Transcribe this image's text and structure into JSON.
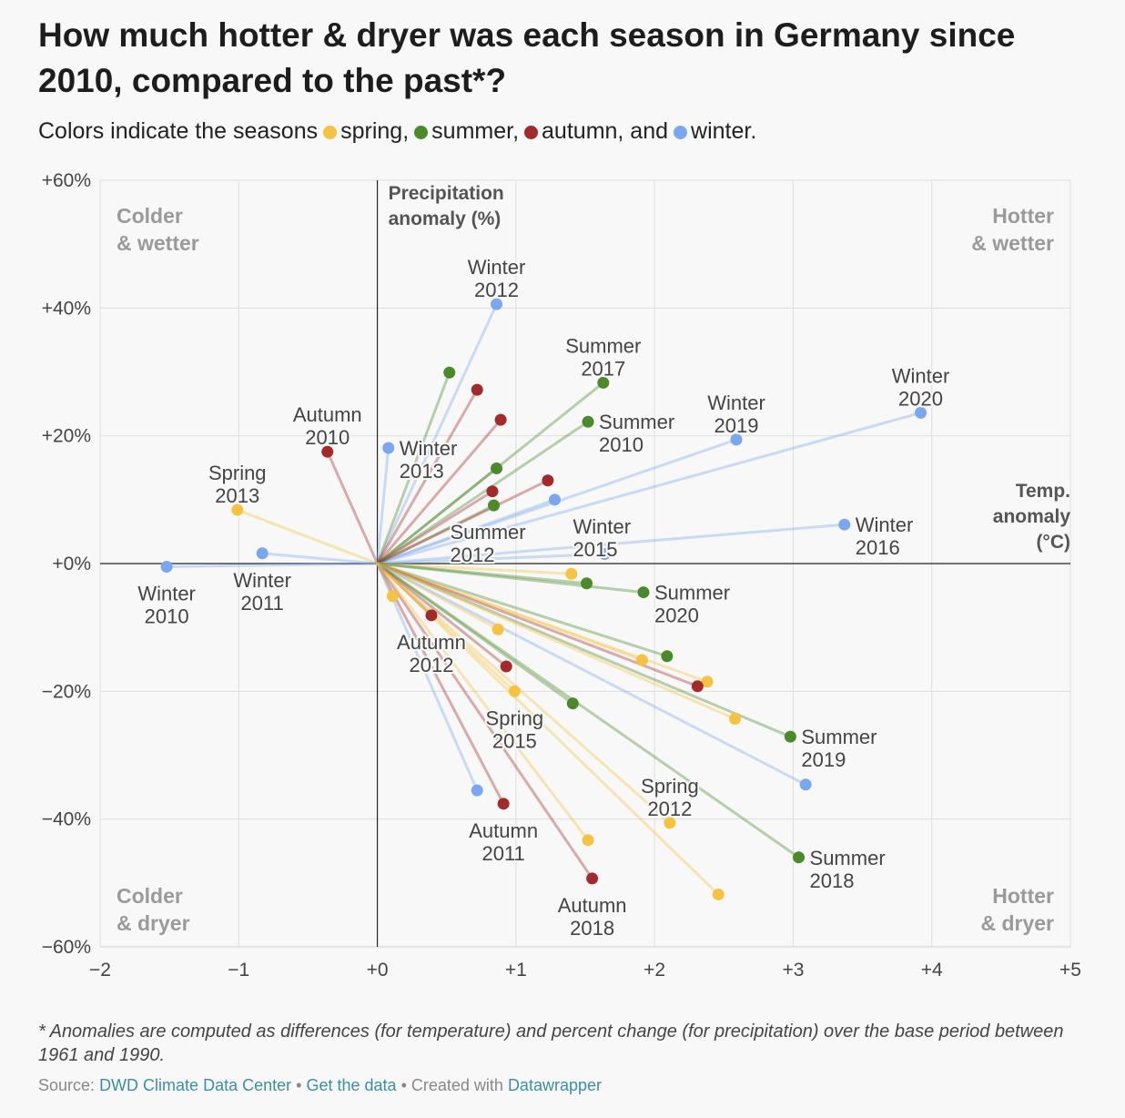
{
  "title": "How much hotter & dryer was each season in Germany since 2010, compared to the past*?",
  "subtitle": {
    "prefix": "Colors indicate the seasons",
    "spring": "spring,",
    "summer": "summer,",
    "autumn": "autumn, and",
    "winter": "winter."
  },
  "colors": {
    "spring": "#f5c242",
    "summer": "#4a8a2a",
    "autumn": "#a32a2a",
    "winter": "#7ba7f0",
    "text": "#444444",
    "link": "#3c8ea8"
  },
  "quadrants": {
    "top_left": [
      "Colder",
      "& wetter"
    ],
    "top_right": [
      "Hotter",
      "& wetter"
    ],
    "bottom_left": [
      "Colder",
      "& dryer"
    ],
    "bottom_right": [
      "Hotter",
      "& dryer"
    ]
  },
  "chart_data": {
    "type": "scatter",
    "xlabel": [
      "Temp.",
      "anomaly",
      "(°C)"
    ],
    "ylabel": [
      "Precipitation",
      "anomaly (%)"
    ],
    "xlim": [
      -2,
      5
    ],
    "ylim": [
      -60,
      60
    ],
    "x_ticks": [
      {
        "value": -2,
        "label": "−2"
      },
      {
        "value": -1,
        "label": "−1"
      },
      {
        "value": 0,
        "label": "+0"
      },
      {
        "value": 1,
        "label": "+1"
      },
      {
        "value": 2,
        "label": "+2"
      },
      {
        "value": 3,
        "label": "+3"
      },
      {
        "value": 4,
        "label": "+4"
      },
      {
        "value": 5,
        "label": "+5"
      }
    ],
    "y_ticks": [
      {
        "value": 60,
        "label": "+60%"
      },
      {
        "value": 40,
        "label": "+40%"
      },
      {
        "value": 20,
        "label": "+20%"
      },
      {
        "value": 0,
        "label": "+0%"
      },
      {
        "value": -20,
        "label": "−20%"
      },
      {
        "value": -40,
        "label": "−40%"
      },
      {
        "value": -60,
        "label": "−60%"
      }
    ],
    "grid": true,
    "lines_from_origin": true,
    "points": [
      {
        "season": "winter",
        "x": 0.86,
        "y": 40.6,
        "label": [
          "Winter",
          "2012"
        ],
        "label_pos": "above"
      },
      {
        "season": "summer",
        "x": 1.63,
        "y": 28.3,
        "label": [
          "Summer",
          "2017"
        ],
        "label_pos": "above"
      },
      {
        "season": "winter",
        "x": 3.92,
        "y": 23.6,
        "label": [
          "Winter",
          "2020"
        ],
        "label_pos": "above"
      },
      {
        "season": "winter",
        "x": 2.59,
        "y": 19.4,
        "label": [
          "Winter",
          "2019"
        ],
        "label_pos": "above"
      },
      {
        "season": "summer",
        "x": 1.52,
        "y": 22.2,
        "label": [
          "Summer",
          "2010"
        ],
        "label_pos": "right"
      },
      {
        "season": "autumn",
        "x": -0.36,
        "y": 17.5,
        "label": [
          "Autumn",
          "2010"
        ],
        "label_pos": "above"
      },
      {
        "season": "winter",
        "x": 0.08,
        "y": 18.1,
        "label": [
          "Winter",
          "2013"
        ],
        "label_pos": "right"
      },
      {
        "season": "spring",
        "x": -1.01,
        "y": 8.4,
        "label": [
          "Spring",
          "2013"
        ],
        "label_pos": "above"
      },
      {
        "season": "winter",
        "x": 1.28,
        "y": 10.0,
        "label": [
          "Winter",
          "2015"
        ],
        "label_pos": "below-right"
      },
      {
        "season": "summer",
        "x": 0.84,
        "y": 9.1,
        "label": [
          "Summer",
          "2012"
        ],
        "label_pos": "below-left"
      },
      {
        "season": "winter",
        "x": 3.37,
        "y": 6.1,
        "label": [
          "Winter",
          "2016"
        ],
        "label_pos": "right"
      },
      {
        "season": "winter",
        "x": -1.52,
        "y": -0.5,
        "label": [
          "Winter",
          "2010"
        ],
        "label_pos": "below"
      },
      {
        "season": "winter",
        "x": -0.83,
        "y": 1.6,
        "label": [
          "Winter",
          "2011"
        ],
        "label_pos": "below"
      },
      {
        "season": "summer",
        "x": 1.92,
        "y": -4.5,
        "label": [
          "Summer",
          "2020"
        ],
        "label_pos": "right"
      },
      {
        "season": "autumn",
        "x": 0.39,
        "y": -8.1,
        "label": [
          "Autumn",
          "2012"
        ],
        "label_pos": "below"
      },
      {
        "season": "spring",
        "x": 0.99,
        "y": -20.0,
        "label": [
          "Spring",
          "2015"
        ],
        "label_pos": "below"
      },
      {
        "season": "summer",
        "x": 2.98,
        "y": -27.1,
        "label": [
          "Summer",
          "2019"
        ],
        "label_pos": "right"
      },
      {
        "season": "spring",
        "x": 2.11,
        "y": -40.6,
        "label": [
          "Spring",
          "2012"
        ],
        "label_pos": "above"
      },
      {
        "season": "autumn",
        "x": 0.91,
        "y": -37.6,
        "label": [
          "Autumn",
          "2011"
        ],
        "label_pos": "below"
      },
      {
        "season": "summer",
        "x": 3.04,
        "y": -46.0,
        "label": [
          "Summer",
          "2018"
        ],
        "label_pos": "right"
      },
      {
        "season": "autumn",
        "x": 1.55,
        "y": -49.3,
        "label": [
          "Autumn",
          "2018"
        ],
        "label_pos": "below"
      },
      {
        "season": "summer",
        "x": 0.52,
        "y": 29.9
      },
      {
        "season": "autumn",
        "x": 0.72,
        "y": 27.2
      },
      {
        "season": "autumn",
        "x": 0.89,
        "y": 22.5
      },
      {
        "season": "summer",
        "x": 0.86,
        "y": 14.9
      },
      {
        "season": "autumn",
        "x": 1.23,
        "y": 13.0
      },
      {
        "season": "autumn",
        "x": 0.83,
        "y": 11.3
      },
      {
        "season": "winter",
        "x": 1.64,
        "y": 1.5
      },
      {
        "season": "spring",
        "x": 1.4,
        "y": -1.6
      },
      {
        "season": "summer",
        "x": 1.51,
        "y": -3.1
      },
      {
        "season": "spring",
        "x": 0.11,
        "y": -5.1
      },
      {
        "season": "spring",
        "x": 0.87,
        "y": -10.3
      },
      {
        "season": "summer",
        "x": 2.09,
        "y": -14.5
      },
      {
        "season": "spring",
        "x": 1.91,
        "y": -15.1
      },
      {
        "season": "spring",
        "x": 2.38,
        "y": -18.5
      },
      {
        "season": "autumn",
        "x": 2.31,
        "y": -19.2
      },
      {
        "season": "autumn",
        "x": 0.93,
        "y": -16.1
      },
      {
        "season": "summer",
        "x": 1.41,
        "y": -21.9
      },
      {
        "season": "spring",
        "x": 2.58,
        "y": -24.3
      },
      {
        "season": "winter",
        "x": 3.09,
        "y": -34.6
      },
      {
        "season": "winter",
        "x": 0.72,
        "y": -35.5
      },
      {
        "season": "spring",
        "x": 1.52,
        "y": -43.3
      },
      {
        "season": "spring",
        "x": 2.46,
        "y": -51.8
      }
    ]
  },
  "footnote": "* Anomalies are computed as differences (for temperature) and percent change (for precipitation) over the base period between 1961 and 1990.",
  "source": {
    "prefix": "Source:",
    "provider": "DWD Climate Data Center",
    "sep1": "•",
    "data_link": "Get the data",
    "sep2": "• Created with",
    "tool": "Datawrapper"
  }
}
